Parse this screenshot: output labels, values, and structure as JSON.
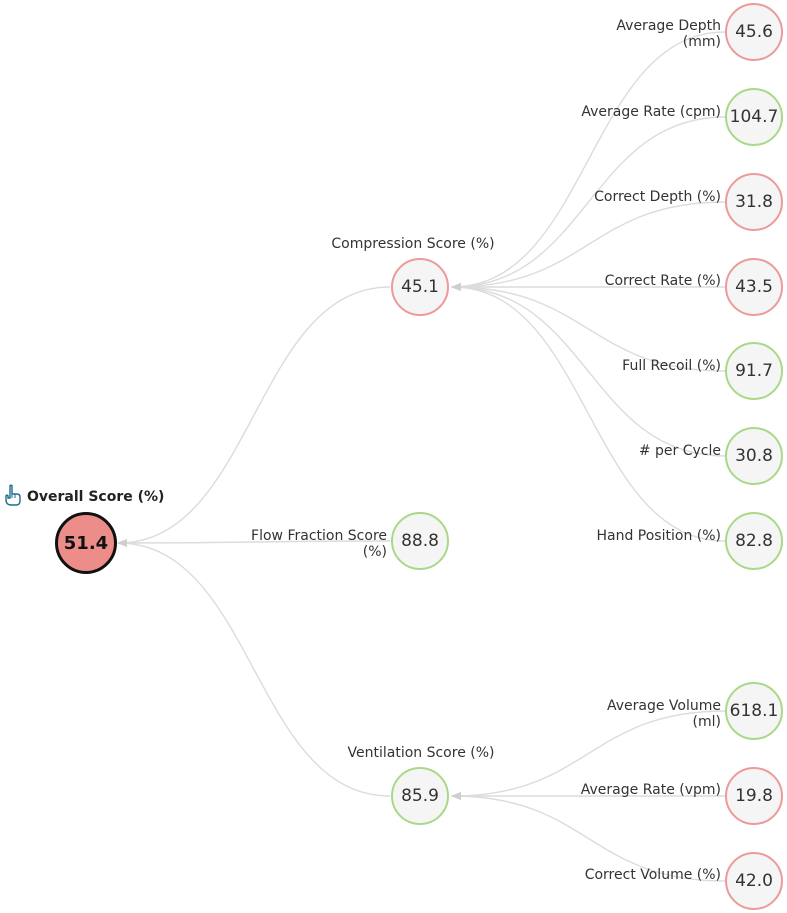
{
  "overall": {
    "label": "Overall Score (%)",
    "value": "51.4",
    "status": "red"
  },
  "colors": {
    "green": "#a9d987",
    "red": "#ec9a9a",
    "root_fill": "#ec8d8a",
    "link": "#d9d9d9"
  },
  "icons": {
    "root_marker": "pointing-hand-icon"
  },
  "compression": {
    "label": "Compression Score (%)",
    "value": "45.1",
    "status": "red",
    "children": [
      {
        "label_line1": "Average Depth",
        "label_line2": "(mm)",
        "value": "45.6",
        "status": "red"
      },
      {
        "label_line1": "Average Rate (cpm)",
        "label_line2": "",
        "value": "104.7",
        "status": "green"
      },
      {
        "label_line1": "Correct Depth (%)",
        "label_line2": "",
        "value": "31.8",
        "status": "red"
      },
      {
        "label_line1": "Correct Rate (%)",
        "label_line2": "",
        "value": "43.5",
        "status": "red"
      },
      {
        "label_line1": "Full Recoil (%)",
        "label_line2": "",
        "value": "91.7",
        "status": "green"
      },
      {
        "label_line1": "# per Cycle",
        "label_line2": "",
        "value": "30.8",
        "status": "green"
      },
      {
        "label_line1": "Hand Position (%)",
        "label_line2": "",
        "value": "82.8",
        "status": "green"
      }
    ]
  },
  "flow": {
    "label_line1": "Flow Fraction Score",
    "label_line2": "(%)",
    "value": "88.8",
    "status": "green"
  },
  "ventilation": {
    "label": "Ventilation Score (%)",
    "value": "85.9",
    "status": "green",
    "children": [
      {
        "label_line1": "Average Volume",
        "label_line2": "(ml)",
        "value": "618.1",
        "status": "green"
      },
      {
        "label_line1": "Average Rate (vpm)",
        "label_line2": "",
        "value": "19.8",
        "status": "red"
      },
      {
        "label_line1": "Correct Volume (%)",
        "label_line2": "",
        "value": "42.0",
        "status": "red"
      }
    ]
  }
}
